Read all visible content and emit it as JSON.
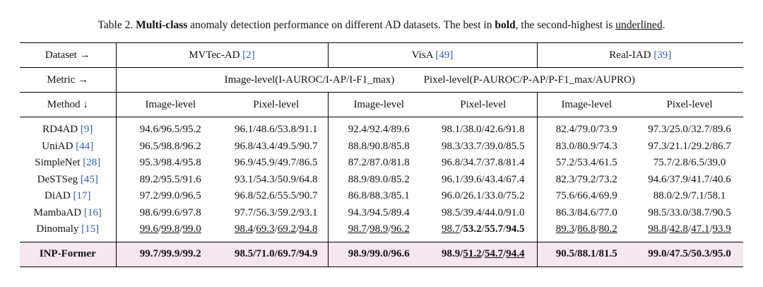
{
  "caption": {
    "prefix": "Table 2. ",
    "bold_term": "Multi-class",
    "mid": " anomaly detection performance on different AD datasets. The best in ",
    "bold_word": "bold",
    "after_bold": ", the second-highest is ",
    "underlined_word": "underlined",
    "suffix": "."
  },
  "header": {
    "dataset_label": "Dataset →",
    "metric_label": "Metric →",
    "method_label": "Method ↓",
    "datasets": [
      {
        "name": "MVTec-AD",
        "ref": "[2]"
      },
      {
        "name": "VisA",
        "ref": "[49]"
      },
      {
        "name": "Real-IAD",
        "ref": "[39]"
      }
    ],
    "image_metric": "Image-level(I-AUROC/I-AP/I-F1_max)",
    "pixel_metric": "Pixel-level(P-AUROC/P-AP/P-F1_max/AUPRO)",
    "image_level": "Image-level",
    "pixel_level": "Pixel-level"
  },
  "rows": [
    {
      "method": "RD4AD",
      "ref": "[9]",
      "cells": [
        [
          [
            "94.6",
            ""
          ],
          [
            "96.5",
            ""
          ],
          [
            "95.2",
            ""
          ]
        ],
        [
          [
            "96.1",
            ""
          ],
          [
            "48.6",
            ""
          ],
          [
            "53.8",
            ""
          ],
          [
            "91.1",
            ""
          ]
        ],
        [
          [
            "92.4",
            ""
          ],
          [
            "92.4",
            ""
          ],
          [
            "89.6",
            ""
          ]
        ],
        [
          [
            "98.1",
            ""
          ],
          [
            "38.0",
            ""
          ],
          [
            "42.6",
            ""
          ],
          [
            "91.8",
            ""
          ]
        ],
        [
          [
            "82.4",
            ""
          ],
          [
            "79.0",
            ""
          ],
          [
            "73.9",
            ""
          ]
        ],
        [
          [
            "97.3",
            ""
          ],
          [
            "25.0",
            ""
          ],
          [
            "32.7",
            ""
          ],
          [
            "89.6",
            ""
          ]
        ]
      ]
    },
    {
      "method": "UniAD",
      "ref": "[44]",
      "cells": [
        [
          [
            "96.5",
            ""
          ],
          [
            "98.8",
            ""
          ],
          [
            "96.2",
            ""
          ]
        ],
        [
          [
            "96.8",
            ""
          ],
          [
            "43.4",
            ""
          ],
          [
            "49.5",
            ""
          ],
          [
            "90.7",
            ""
          ]
        ],
        [
          [
            "88.8",
            ""
          ],
          [
            "90.8",
            ""
          ],
          [
            "85.8",
            ""
          ]
        ],
        [
          [
            "98.3",
            ""
          ],
          [
            "33.7",
            ""
          ],
          [
            "39.0",
            ""
          ],
          [
            "85.5",
            ""
          ]
        ],
        [
          [
            "83.0",
            ""
          ],
          [
            "80.9",
            ""
          ],
          [
            "74.3",
            ""
          ]
        ],
        [
          [
            "97.3",
            ""
          ],
          [
            "21.1",
            ""
          ],
          [
            "29.2",
            ""
          ],
          [
            "86.7",
            ""
          ]
        ]
      ]
    },
    {
      "method": "SimpleNet",
      "ref": "[28]",
      "cells": [
        [
          [
            "95.3",
            ""
          ],
          [
            "98.4",
            ""
          ],
          [
            "95.8",
            ""
          ]
        ],
        [
          [
            "96.9",
            ""
          ],
          [
            "45.9",
            ""
          ],
          [
            "49.7",
            ""
          ],
          [
            "86.5",
            ""
          ]
        ],
        [
          [
            "87.2",
            ""
          ],
          [
            "87.0",
            ""
          ],
          [
            "81.8",
            ""
          ]
        ],
        [
          [
            "96.8",
            ""
          ],
          [
            "34.7",
            ""
          ],
          [
            "37.8",
            ""
          ],
          [
            "81.4",
            ""
          ]
        ],
        [
          [
            "57.2",
            ""
          ],
          [
            "53.4",
            ""
          ],
          [
            "61.5",
            ""
          ]
        ],
        [
          [
            "75.7",
            ""
          ],
          [
            "2.8",
            ""
          ],
          [
            "6.5",
            ""
          ],
          [
            "39.0",
            ""
          ]
        ]
      ]
    },
    {
      "method": "DeSTSeg",
      "ref": "[45]",
      "cells": [
        [
          [
            "89.2",
            ""
          ],
          [
            "95.5",
            ""
          ],
          [
            "91.6",
            ""
          ]
        ],
        [
          [
            "93.1",
            ""
          ],
          [
            "54.3",
            ""
          ],
          [
            "50.9",
            ""
          ],
          [
            "64.8",
            ""
          ]
        ],
        [
          [
            "88.9",
            ""
          ],
          [
            "89.0",
            ""
          ],
          [
            "85.2",
            ""
          ]
        ],
        [
          [
            "96.1",
            ""
          ],
          [
            "39.6",
            ""
          ],
          [
            "43.4",
            ""
          ],
          [
            "67.4",
            ""
          ]
        ],
        [
          [
            "82.3",
            ""
          ],
          [
            "79.2",
            ""
          ],
          [
            "73.2",
            ""
          ]
        ],
        [
          [
            "94.6",
            ""
          ],
          [
            "37.9",
            ""
          ],
          [
            "41.7",
            ""
          ],
          [
            "40.6",
            ""
          ]
        ]
      ]
    },
    {
      "method": "DiAD",
      "ref": "[17]",
      "cells": [
        [
          [
            "97.2",
            ""
          ],
          [
            "99.0",
            ""
          ],
          [
            "96.5",
            ""
          ]
        ],
        [
          [
            "96.8",
            ""
          ],
          [
            "52.6",
            ""
          ],
          [
            "55.5",
            ""
          ],
          [
            "90.7",
            ""
          ]
        ],
        [
          [
            "86.8",
            ""
          ],
          [
            "88.3",
            ""
          ],
          [
            "85.1",
            ""
          ]
        ],
        [
          [
            "96.0",
            ""
          ],
          [
            "26.1",
            ""
          ],
          [
            "33.0",
            ""
          ],
          [
            "75.2",
            ""
          ]
        ],
        [
          [
            "75.6",
            ""
          ],
          [
            "66.4",
            ""
          ],
          [
            "69.9",
            ""
          ]
        ],
        [
          [
            "88.0",
            ""
          ],
          [
            "2.9",
            ""
          ],
          [
            "7.1",
            ""
          ],
          [
            "58.1",
            ""
          ]
        ]
      ]
    },
    {
      "method": "MambaAD",
      "ref": "[16]",
      "cells": [
        [
          [
            "98.6",
            ""
          ],
          [
            "99.6",
            ""
          ],
          [
            "97.8",
            ""
          ]
        ],
        [
          [
            "97.7",
            ""
          ],
          [
            "56.3",
            ""
          ],
          [
            "59.2",
            ""
          ],
          [
            "93.1",
            ""
          ]
        ],
        [
          [
            "94.3",
            ""
          ],
          [
            "94.5",
            ""
          ],
          [
            "89.4",
            ""
          ]
        ],
        [
          [
            "98.5",
            ""
          ],
          [
            "39.4",
            ""
          ],
          [
            "44.0",
            ""
          ],
          [
            "91.0",
            ""
          ]
        ],
        [
          [
            "86.3",
            ""
          ],
          [
            "84.6",
            ""
          ],
          [
            "77.0",
            ""
          ]
        ],
        [
          [
            "98.5",
            ""
          ],
          [
            "33.0",
            ""
          ],
          [
            "38.7",
            ""
          ],
          [
            "90.5",
            ""
          ]
        ]
      ]
    },
    {
      "method": "Dinomaly",
      "ref": "[15]",
      "cells": [
        [
          [
            "99.6",
            "u"
          ],
          [
            "99.8",
            "u"
          ],
          [
            "99.0",
            "u"
          ]
        ],
        [
          [
            "98.4",
            "u"
          ],
          [
            "69.3",
            "u"
          ],
          [
            "69.2",
            "u"
          ],
          [
            "94.8",
            "u"
          ]
        ],
        [
          [
            "98.7",
            "u"
          ],
          [
            "98.9",
            "u"
          ],
          [
            "96.2",
            "u"
          ]
        ],
        [
          [
            "98.7",
            "u"
          ],
          [
            "53.2",
            "b"
          ],
          [
            "55.7",
            "b"
          ],
          [
            "94.5",
            "b"
          ]
        ],
        [
          [
            "89.3",
            "u"
          ],
          [
            "86.8",
            "u"
          ],
          [
            "80.2",
            "u"
          ]
        ],
        [
          [
            "98.8",
            "u"
          ],
          [
            "42.8",
            "u"
          ],
          [
            "47.1",
            "u"
          ],
          [
            "93.9",
            "u"
          ]
        ]
      ]
    }
  ],
  "ours": {
    "method": "INP-Former",
    "cells": [
      [
        [
          "99.7",
          ""
        ],
        [
          "99.9",
          ""
        ],
        [
          "99.2",
          ""
        ]
      ],
      [
        [
          "98.5",
          ""
        ],
        [
          "71.0",
          ""
        ],
        [
          "69.7",
          ""
        ],
        [
          "94.9",
          ""
        ]
      ],
      [
        [
          "98.9",
          ""
        ],
        [
          "99.0",
          ""
        ],
        [
          "96.6",
          ""
        ]
      ],
      [
        [
          "98.9",
          ""
        ],
        [
          "51.2",
          "u"
        ],
        [
          "54.7",
          "u"
        ],
        [
          "94.4",
          "u"
        ]
      ],
      [
        [
          "90.5",
          ""
        ],
        [
          "88.1",
          ""
        ],
        [
          "81.5",
          ""
        ]
      ],
      [
        [
          "99.0",
          ""
        ],
        [
          "47.5",
          ""
        ],
        [
          "50.3",
          ""
        ],
        [
          "95.0",
          ""
        ]
      ]
    ]
  }
}
